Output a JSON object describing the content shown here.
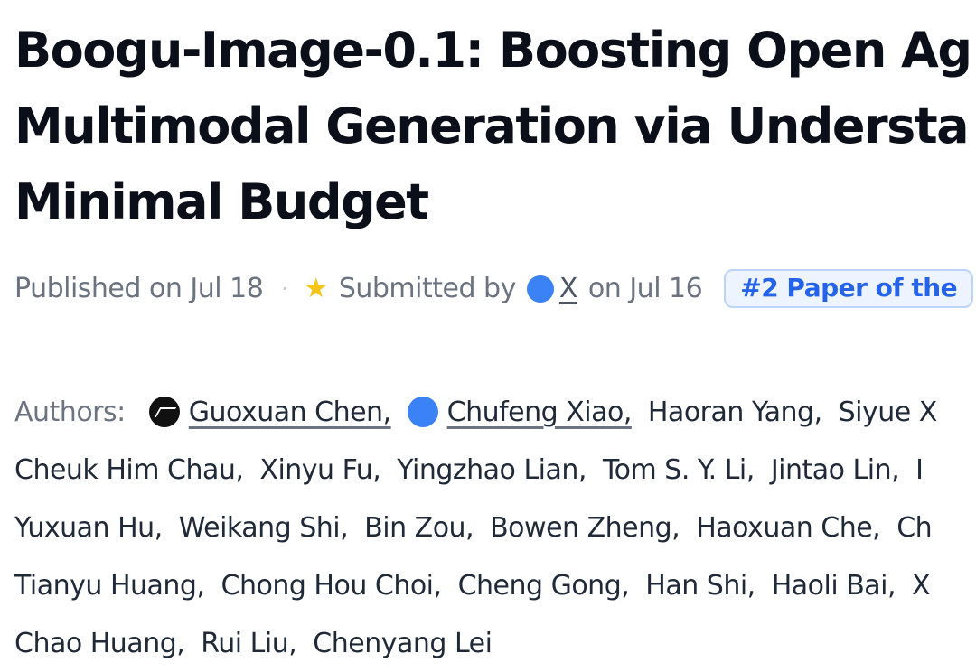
{
  "paper": {
    "title_lines": [
      "Boogu-Image-0.1: Boosting Open Ag",
      "Multimodal Generation via Understa",
      "Minimal Budget"
    ]
  },
  "meta": {
    "published": "Published on Jul 18",
    "separator": "·",
    "submitted_by": "Submitted by",
    "submitter": "X",
    "submitted_date": "on Jul 16",
    "badge": "#2 Paper of the"
  },
  "authors": {
    "label": "Authors:",
    "rows": [
      [
        "Guoxuan Chen,",
        "Chufeng Xiao,",
        "Haoran Yang,",
        "Siyue X"
      ],
      [
        "Cheuk Him Chau,",
        "Xinyu Fu,",
        "Yingzhao Lian,",
        "Tom S. Y. Li,",
        "Jintao Lin,",
        "I"
      ],
      [
        "Yuxuan Hu,",
        "Weikang Shi,",
        "Bin Zou,",
        "Bowen Zheng,",
        "Haoxuan Che,",
        "Ch"
      ],
      [
        "Tianyu Huang,",
        "Chong Hou Choi,",
        "Cheng Gong,",
        "Han Shi,",
        "Haoli Bai,",
        "X"
      ],
      [
        "Chao Huang,",
        "Rui Liu,",
        "Chenyang Lei"
      ]
    ]
  },
  "colors": {
    "badge_bg": "#eef4ff",
    "badge_text": "#2563eb",
    "submitter_dot": "#3b82f6",
    "star": "#f5c518"
  },
  "icons": {
    "star": "star-icon",
    "submitter_avatar": "user-avatar-icon",
    "author_avatar_1": "dark-avatar-icon",
    "author_avatar_2": "blue-avatar-icon"
  }
}
